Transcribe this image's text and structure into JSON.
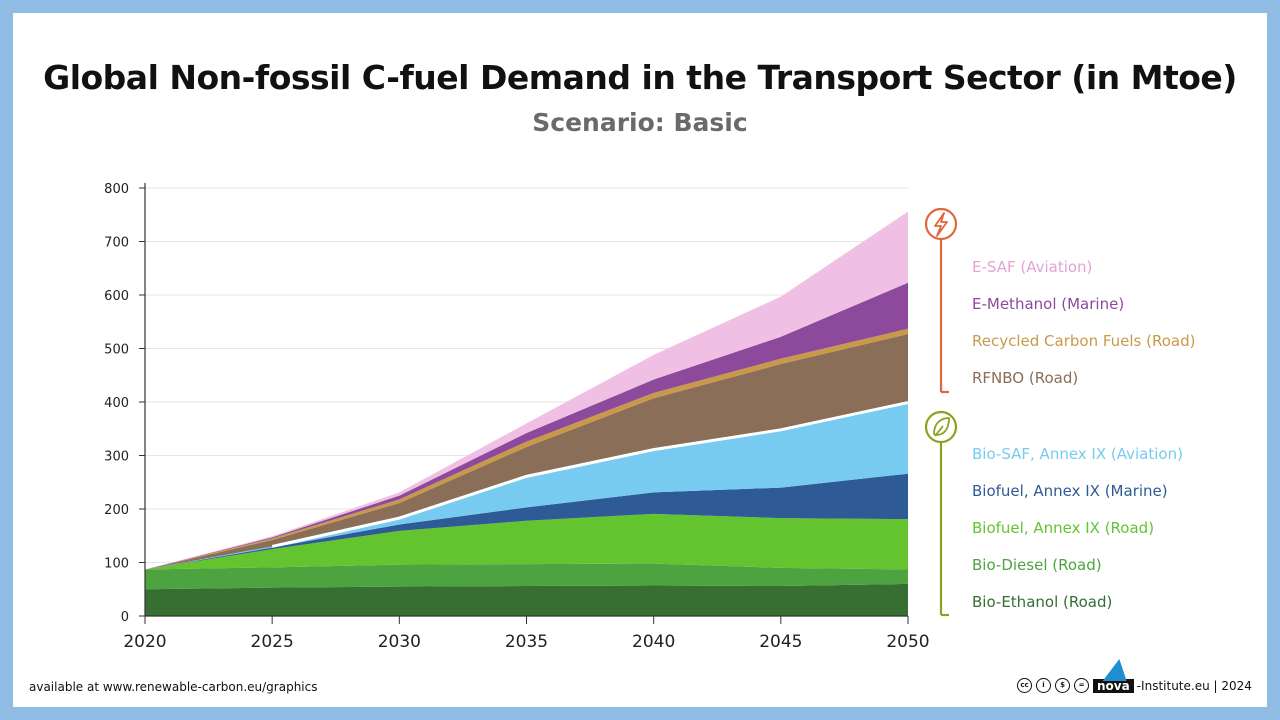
{
  "header": {
    "title": "Global Non-fossil C-fuel Demand in the Transport Sector (in Mtoe)",
    "subtitle": "Scenario: Basic"
  },
  "footer": {
    "source": "available at www.renewable-carbon.eu/graphics",
    "brand_prefix": "nova",
    "brand_suffix": "-Institute.eu | 2024",
    "license_icons": [
      "cc-icon",
      "by-icon",
      "nc-icon",
      "nd-icon"
    ]
  },
  "legend_groups": [
    {
      "icon": "lightning-icon",
      "color": "#e0663c"
    },
    {
      "icon": "leaf-icon",
      "color": "#8ca21f"
    }
  ],
  "chart_data": {
    "type": "area",
    "stacked": true,
    "x": [
      2020,
      2025,
      2030,
      2035,
      2040,
      2045,
      2050
    ],
    "ylim": [
      0,
      800
    ],
    "yticks": [
      0,
      100,
      200,
      300,
      400,
      500,
      600,
      700,
      800
    ],
    "grid": true,
    "legend_position": "right",
    "title": "Global Non-fossil C-fuel Demand in the Transport Sector (in Mtoe)",
    "subtitle": "Scenario: Basic",
    "series": [
      {
        "name": "Bio-Ethanol (Road)",
        "color": "#376e32",
        "values": [
          50,
          53,
          55,
          56,
          57,
          56,
          60
        ]
      },
      {
        "name": "Bio-Diesel (Road)",
        "color": "#4ea341",
        "values": [
          37,
          38,
          41,
          41,
          41,
          34,
          27
        ]
      },
      {
        "name": "Biofuel, Annex IX (Road)",
        "color": "#63c430",
        "values": [
          0,
          34,
          63,
          81,
          93,
          93,
          94
        ]
      },
      {
        "name": "Biofuel, Annex IX (Marine)",
        "color": "#2e5b96",
        "values": [
          0,
          3,
          12,
          25,
          40,
          57,
          85
        ]
      },
      {
        "name": "Bio-SAF, Annex IX (Aviation)",
        "color": "#78cbf0",
        "values": [
          0,
          2,
          12,
          58,
          80,
          108,
          133
        ]
      },
      {
        "name": "RFNBO (Road)",
        "color": "#8a6e58",
        "values": [
          0,
          12,
          28,
          55,
          96,
          123,
          128
        ]
      },
      {
        "name": "Recycled Carbon Fuels (Road)",
        "color": "#c9994a",
        "values": [
          0,
          3,
          7,
          10,
          10,
          10,
          10
        ]
      },
      {
        "name": "E-Methanol (Marine)",
        "color": "#8d4a9c",
        "values": [
          0,
          2,
          7,
          16,
          25,
          41,
          86
        ]
      },
      {
        "name": "E-SAF (Aviation)",
        "color": "#efc0e4",
        "values": [
          0,
          2,
          6,
          18,
          46,
          75,
          133
        ]
      }
    ]
  }
}
